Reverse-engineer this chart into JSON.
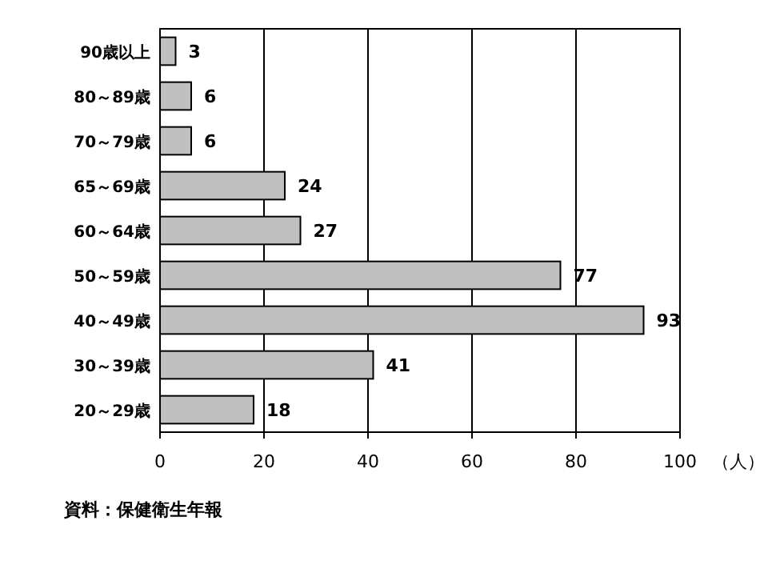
{
  "chart_data": {
    "type": "bar",
    "orientation": "horizontal",
    "categories": [
      "90歳以上",
      "80～89歳",
      "70～79歳",
      "65～69歳",
      "60～64歳",
      "50～59歳",
      "40～49歳",
      "30～39歳",
      "20～29歳"
    ],
    "values": [
      3,
      6,
      6,
      24,
      27,
      77,
      93,
      41,
      18
    ],
    "color": "#c0c0c0",
    "xlim": [
      0,
      100
    ],
    "xticks": [
      0,
      20,
      40,
      60,
      80,
      100
    ],
    "xlabel": "（人）",
    "grid": "x",
    "data_labels": true,
    "annotations": [
      "資料：保健衛生年報"
    ]
  }
}
